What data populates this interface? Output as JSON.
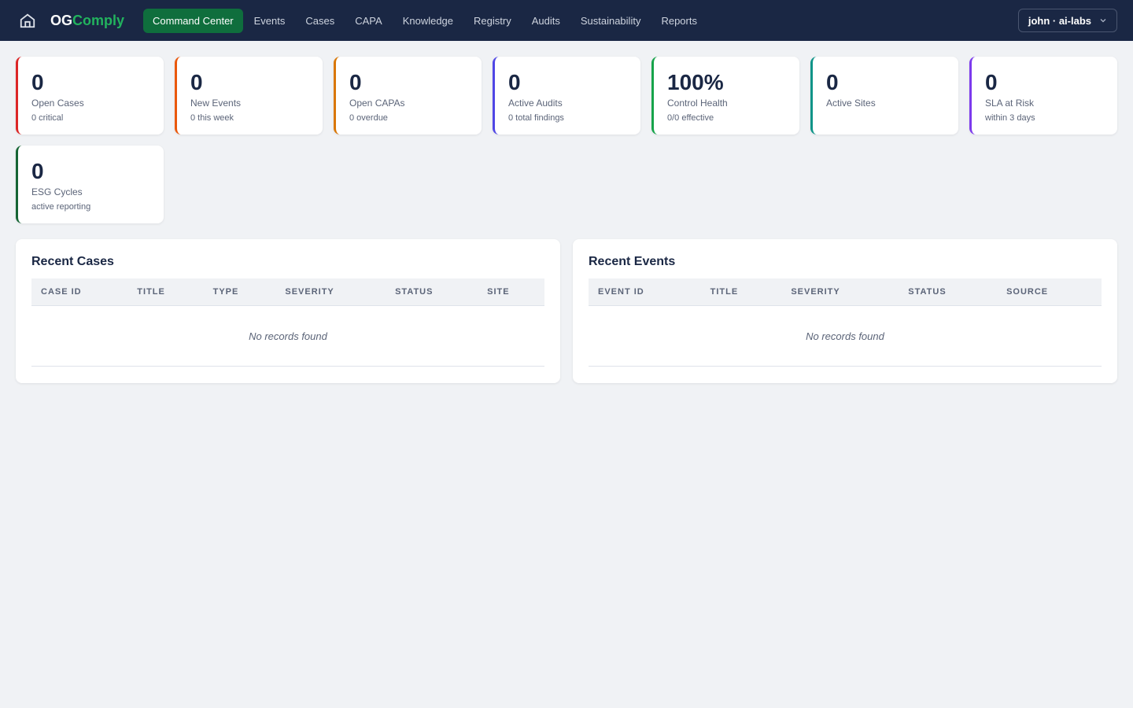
{
  "nav": {
    "logo_a": "OG",
    "logo_b": "Comply",
    "items": [
      "Command Center",
      "Events",
      "Cases",
      "CAPA",
      "Knowledge",
      "Registry",
      "Audits",
      "Sustainability",
      "Reports"
    ],
    "active": 0,
    "user": "john · ai-labs"
  },
  "cards": [
    {
      "value": "0",
      "label": "Open Cases",
      "sub": "0 critical",
      "color": "#dc2626"
    },
    {
      "value": "0",
      "label": "New Events",
      "sub": "0 this week",
      "color": "#ea580c"
    },
    {
      "value": "0",
      "label": "Open CAPAs",
      "sub": "0 overdue",
      "color": "#d97706"
    },
    {
      "value": "0",
      "label": "Active Audits",
      "sub": "0 total findings",
      "color": "#4f46e5"
    },
    {
      "value": "100%",
      "label": "Control Health",
      "sub": "0/0 effective",
      "color": "#16a34a"
    },
    {
      "value": "0",
      "label": "Active Sites",
      "sub": "",
      "color": "#0d9488"
    },
    {
      "value": "0",
      "label": "SLA at Risk",
      "sub": "within 3 days",
      "color": "#7c3aed"
    },
    {
      "value": "0",
      "label": "ESG Cycles",
      "sub": "active reporting",
      "color": "#166534"
    }
  ],
  "recent_cases": {
    "title": "Recent Cases",
    "columns": [
      "CASE ID",
      "TITLE",
      "TYPE",
      "SEVERITY",
      "STATUS",
      "SITE"
    ],
    "empty": "No records found"
  },
  "recent_events": {
    "title": "Recent Events",
    "columns": [
      "EVENT ID",
      "TITLE",
      "SEVERITY",
      "STATUS",
      "SOURCE"
    ],
    "empty": "No records found"
  }
}
